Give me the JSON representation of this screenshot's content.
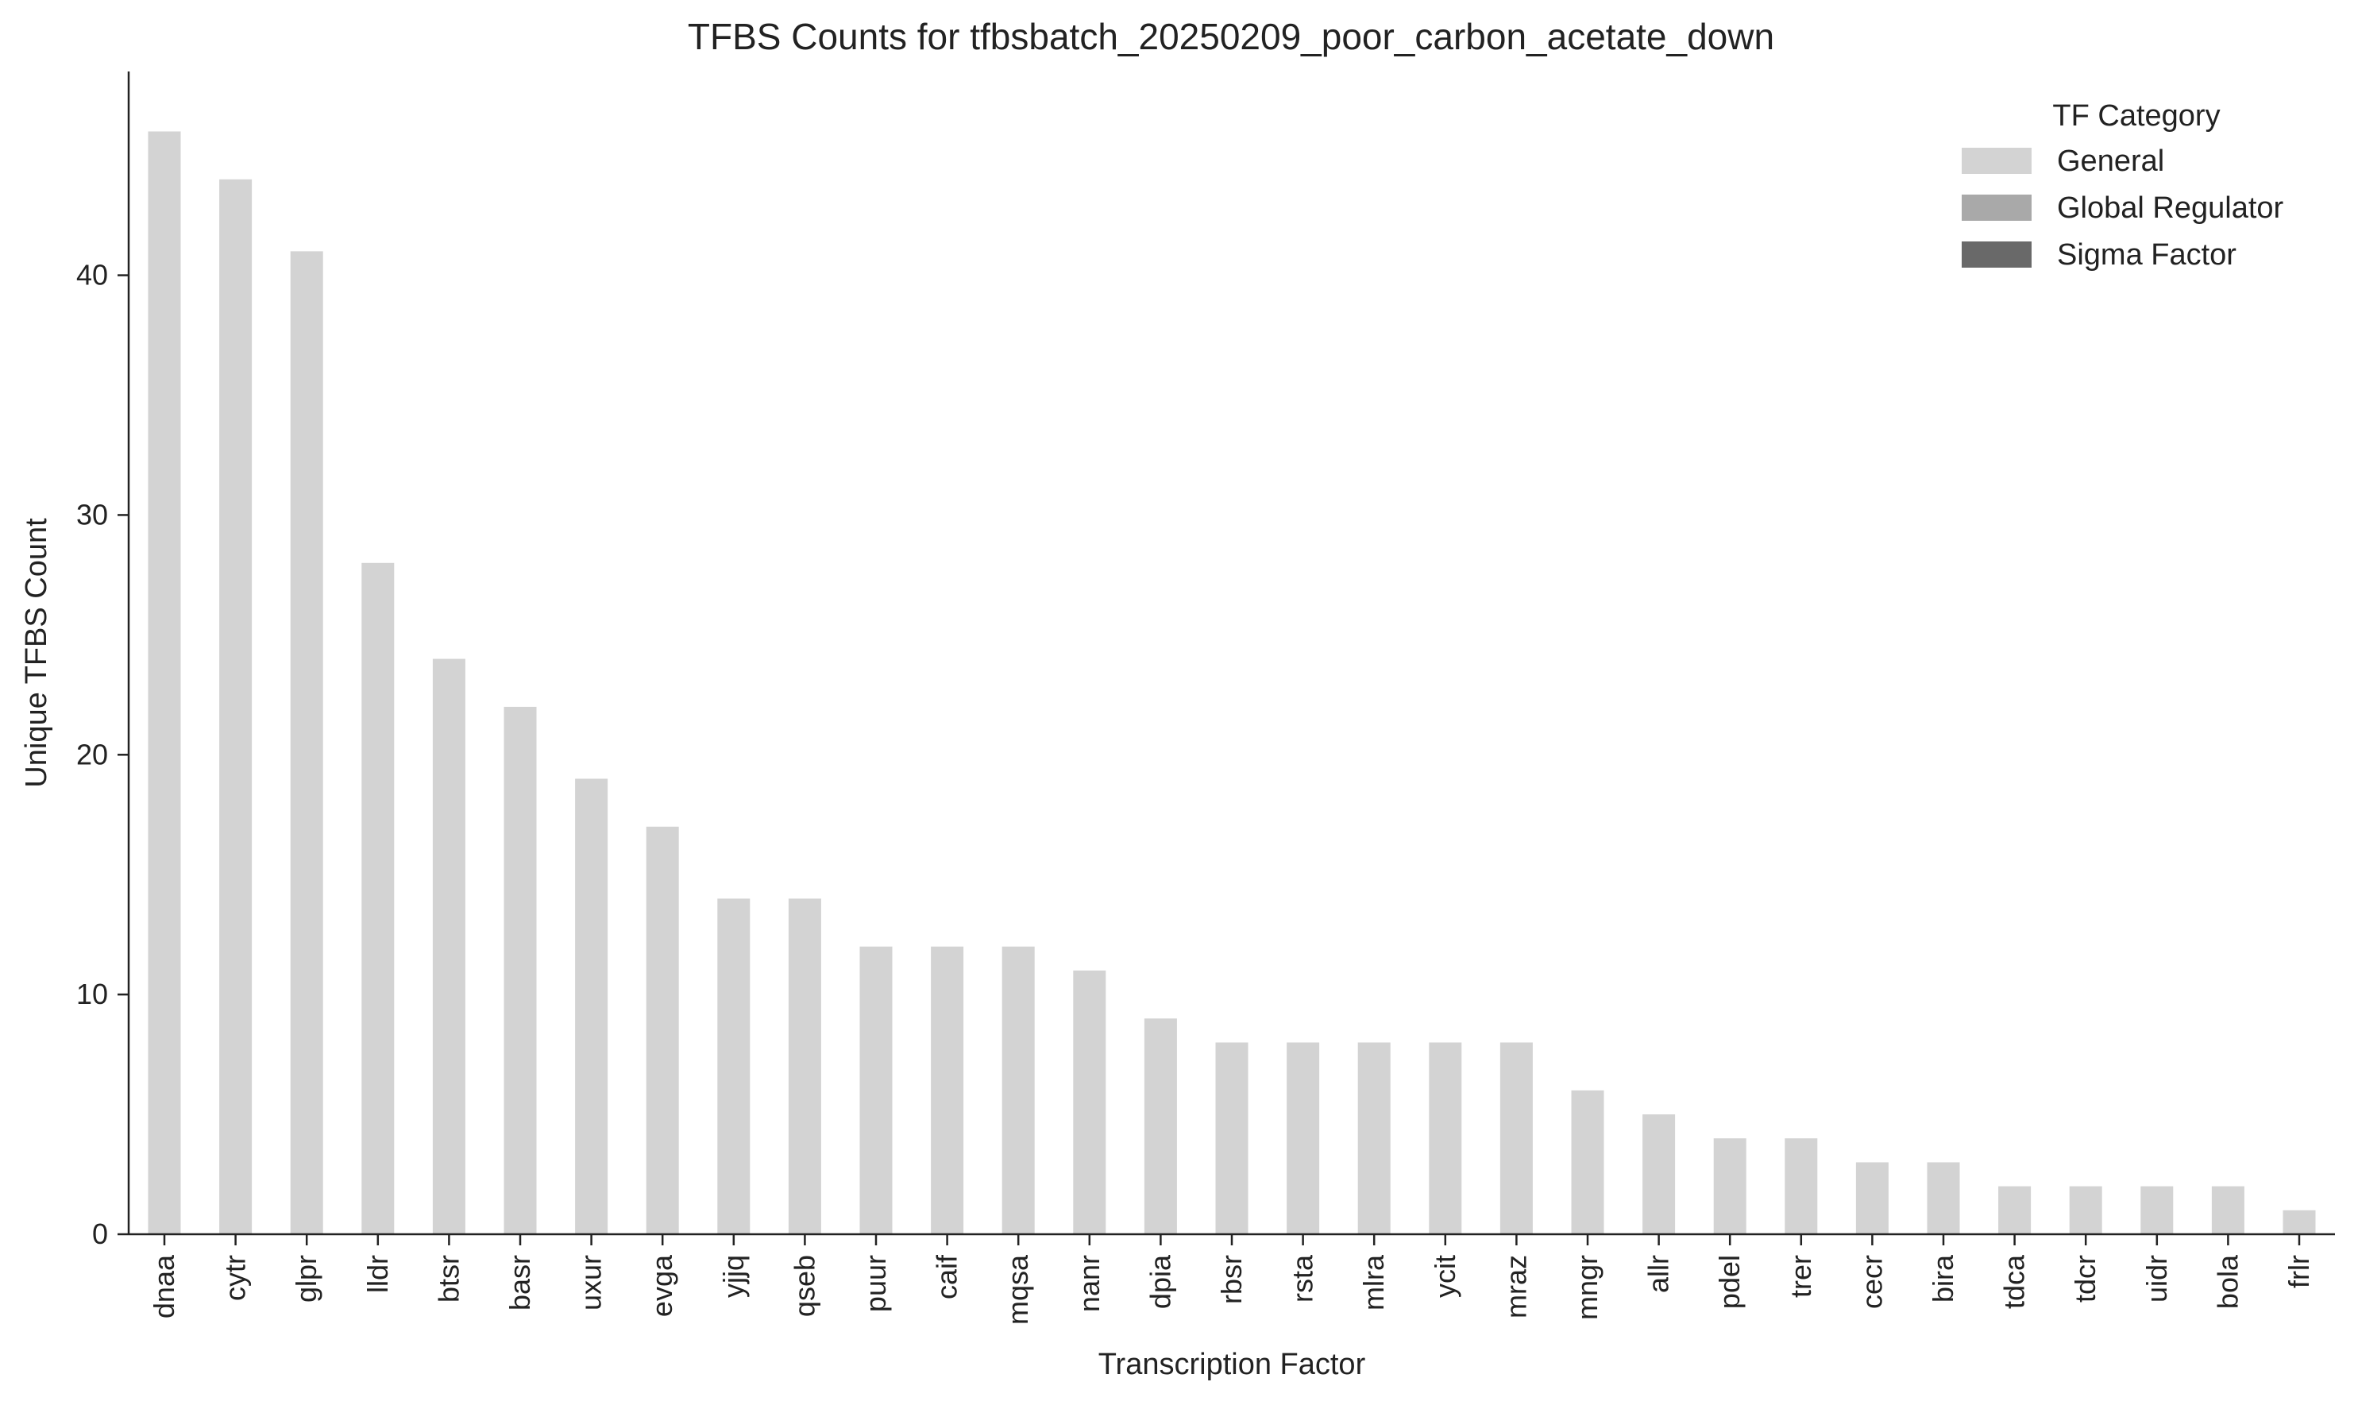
{
  "chart_data": {
    "type": "bar",
    "title": "TFBS Counts for tfbsbatch_20250209_poor_carbon_acetate_down",
    "xlabel": "Transcription Factor",
    "ylabel": "Unique TFBS Count",
    "ylim": [
      0,
      48.5
    ],
    "yticks": [
      0,
      10,
      20,
      30,
      40
    ],
    "grid": false,
    "categories": [
      "dnaa",
      "cytr",
      "glpr",
      "lldr",
      "btsr",
      "basr",
      "uxur",
      "evga",
      "yjjq",
      "qseb",
      "puur",
      "caif",
      "mqsa",
      "nanr",
      "dpia",
      "rbsr",
      "rsta",
      "mlra",
      "ycit",
      "mraz",
      "mngr",
      "allr",
      "pdel",
      "trer",
      "cecr",
      "bira",
      "tdca",
      "tdcr",
      "uidr",
      "bola",
      "frlr"
    ],
    "series": [
      {
        "category_group": "General",
        "color": "#d3d3d3",
        "values": [
          46,
          44,
          41,
          28,
          24,
          22,
          19,
          17,
          14,
          14,
          12,
          12,
          12,
          11,
          9,
          8,
          8,
          8,
          8,
          8,
          6,
          5,
          4,
          4,
          3,
          3,
          2,
          2,
          2,
          2,
          1
        ]
      }
    ],
    "legend": {
      "title": "TF Category",
      "placement": "top-right",
      "entries": [
        {
          "label": "General",
          "color": "#d3d3d3"
        },
        {
          "label": "Global Regulator",
          "color": "#a9a9a9"
        },
        {
          "label": "Sigma Factor",
          "color": "#696969"
        }
      ]
    }
  }
}
